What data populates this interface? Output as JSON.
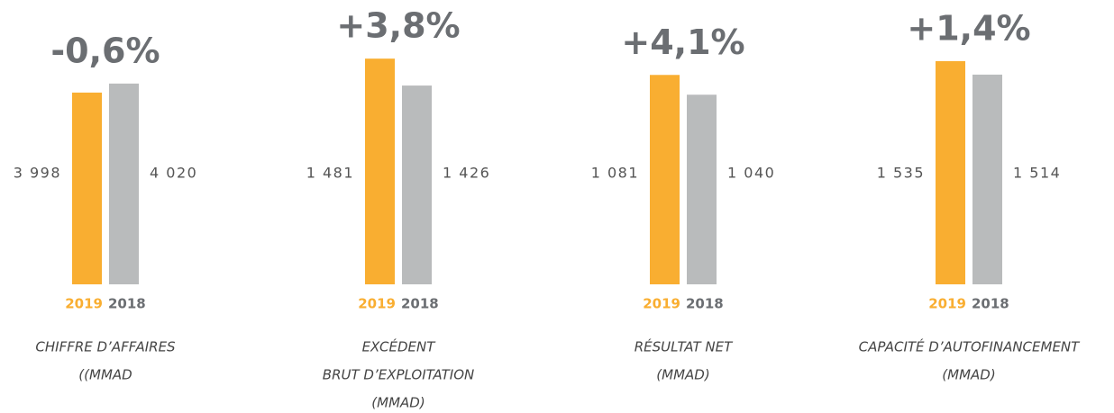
{
  "chart_data": [
    {
      "type": "bar",
      "annotation": "-0,6%",
      "categories": [
        "2019",
        "2018"
      ],
      "values": [
        3998,
        4020
      ],
      "value_labels": [
        "3 998",
        "4 020"
      ],
      "colors": [
        "#f9ae31",
        "#b9bbbc"
      ],
      "ylim": [
        3530,
        4180
      ],
      "caption": [
        "CHIFFRE D’AFFAIRES",
        "((MMAD"
      ]
    },
    {
      "type": "bar",
      "annotation": "+3,8%",
      "categories": [
        "2019",
        "2018"
      ],
      "values": [
        1481,
        1426
      ],
      "value_labels": [
        "1 481",
        "1 426"
      ],
      "colors": [
        "#f9ae31",
        "#b9bbbc"
      ],
      "ylim": [
        1020,
        1564
      ],
      "caption": [
        "EXCÉDENT",
        "BRUT D’EXPLOITATION",
        "(MMAD)"
      ]
    },
    {
      "type": "bar",
      "annotation": "+4,1%",
      "categories": [
        "2019",
        "2018"
      ],
      "values": [
        1081,
        1040
      ],
      "value_labels": [
        "1 081",
        "1 040"
      ],
      "colors": [
        "#f9ae31",
        "#b9bbbc"
      ],
      "ylim": [
        647,
        1199
      ],
      "caption": [
        "RÉSULTAT NET",
        "(MMAD)"
      ]
    },
    {
      "type": "bar",
      "annotation": "+1,4%",
      "categories": [
        "2019",
        "2018"
      ],
      "values": [
        1535,
        1514
      ],
      "value_labels": [
        "1 535",
        "1 514"
      ],
      "colors": [
        "#f9ae31",
        "#b9bbbc"
      ],
      "ylim": [
        1188,
        1602
      ],
      "caption": [
        "CAPACITÉ D’AUTOFINANCEMENT",
        "(MMAD)"
      ]
    }
  ]
}
